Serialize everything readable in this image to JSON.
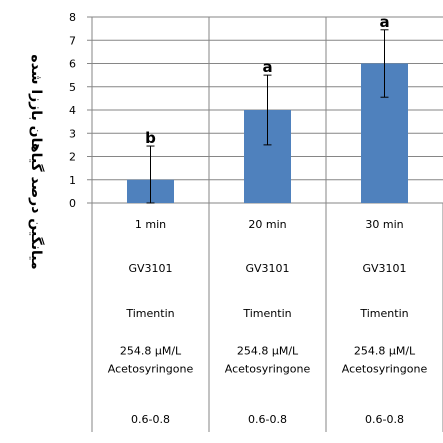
{
  "chart_data": {
    "type": "bar",
    "categories": [
      "1 min",
      "20 min",
      "30 min"
    ],
    "values": [
      1,
      4,
      6
    ],
    "error": [
      1.45,
      1.5,
      1.45
    ],
    "significance_letters": [
      "b",
      "a",
      "a"
    ],
    "ylabel": "میانگین درصد  گیاهان باززا شده",
    "xlabel": "",
    "title": "",
    "ylim": [
      0,
      8
    ],
    "yticks": [
      0,
      1,
      2,
      3,
      4,
      5,
      6,
      7,
      8
    ],
    "grid": true,
    "bar_color": "#4F81BD",
    "table_rows": [
      [
        "1 min",
        "20 min",
        "30 min"
      ],
      [
        "GV3101",
        "GV3101",
        "GV3101"
      ],
      [
        "Timentin",
        "Timentin",
        "Timentin"
      ],
      [
        "254.8 µM/L\nAcetosyringone",
        "254.8 µM/L\nAcetosyringone",
        "254.8 µM/L\nAcetosyringone"
      ],
      [
        "0.6-0.8",
        "0.6-0.8",
        "0.6-0.8"
      ]
    ]
  }
}
